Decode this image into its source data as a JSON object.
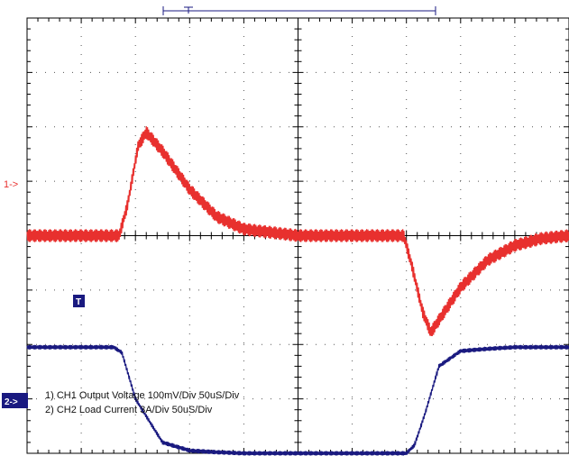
{
  "chart_data": {
    "type": "line",
    "title": "",
    "xlabel": "",
    "ylabel": "",
    "grid": true,
    "x_divisions": 10,
    "y_divisions": 8,
    "annotations": [
      "1) CH1 Output Voltage 100mV/Div 50uS/Div",
      "2) CH2 Load Current 3A/Div 50uS/Div"
    ],
    "series": [
      {
        "channel": "1",
        "marker": "1->",
        "color": "#e8302e",
        "ripple_div": 0.12,
        "x": [
          0.0,
          1.7,
          1.85,
          2.05,
          2.2,
          2.5,
          3.0,
          3.5,
          4.0,
          5.0,
          6.0,
          6.95,
          7.1,
          7.3,
          7.45,
          7.6,
          8.0,
          8.5,
          9.0,
          9.5,
          10.0
        ],
        "y": [
          0.0,
          0.0,
          0.55,
          1.65,
          1.9,
          1.55,
          0.85,
          0.35,
          0.12,
          0.0,
          0.0,
          0.0,
          -0.55,
          -1.4,
          -1.78,
          -1.55,
          -0.95,
          -0.45,
          -0.18,
          -0.05,
          0.0
        ]
      },
      {
        "channel": "2",
        "marker": "2->",
        "color": "#1a1a80",
        "ripple_div": 0.04,
        "x": [
          0.0,
          1.6,
          1.75,
          2.0,
          2.5,
          3.0,
          3.5,
          4.0,
          5.0,
          6.0,
          7.0,
          7.15,
          7.35,
          7.6,
          8.0,
          8.5,
          9.0,
          10.0
        ],
        "y": [
          -2.05,
          -2.05,
          -2.15,
          -3.0,
          -3.8,
          -3.95,
          -3.98,
          -4.0,
          -4.0,
          -4.0,
          -4.0,
          -3.85,
          -3.25,
          -2.4,
          -2.12,
          -2.08,
          -2.05,
          -2.05
        ]
      }
    ],
    "trigger_label": "T"
  }
}
